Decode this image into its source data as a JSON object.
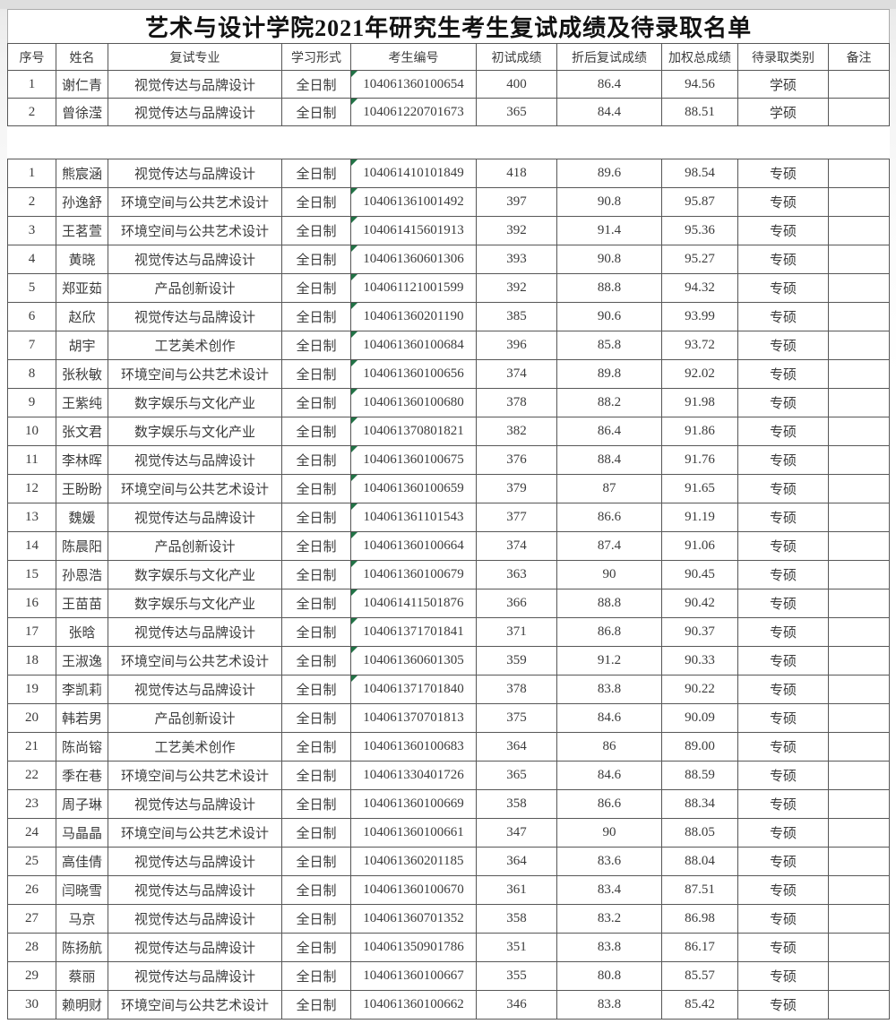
{
  "page": {
    "title": "艺术与设计学院2021年研究生考生复试成绩及待录取名单",
    "margin_color": "#dedede",
    "grid_color": "#575757",
    "text_flag_color": "#217346"
  },
  "table": {
    "headers": [
      "序号",
      "姓名",
      "复试专业",
      "学习形式",
      "考生编号",
      "初试成绩",
      "折后复试成绩",
      "加权总成绩",
      "待录取类别",
      "备注"
    ],
    "sections": [
      {
        "rows": [
          {
            "no": "1",
            "name": "谢仁青",
            "major": "视觉传达与品牌设计",
            "mode": "全日制",
            "candidate_id": "104061360100654",
            "initial_score": "400",
            "retest_score": "86.4",
            "weighted_score": "94.56",
            "category": "学硕",
            "remark": "",
            "text_flag": true
          },
          {
            "no": "2",
            "name": "曾徐滢",
            "major": "视觉传达与品牌设计",
            "mode": "全日制",
            "candidate_id": "104061220701673",
            "initial_score": "365",
            "retest_score": "84.4",
            "weighted_score": "88.51",
            "category": "学硕",
            "remark": "",
            "text_flag": true
          }
        ]
      },
      {
        "rows": [
          {
            "no": "1",
            "name": "熊宸涵",
            "major": "视觉传达与品牌设计",
            "mode": "全日制",
            "candidate_id": "104061410101849",
            "initial_score": "418",
            "retest_score": "89.6",
            "weighted_score": "98.54",
            "category": "专硕",
            "remark": "",
            "text_flag": true
          },
          {
            "no": "2",
            "name": "孙逸舒",
            "major": "环境空间与公共艺术设计",
            "mode": "全日制",
            "candidate_id": "104061361001492",
            "initial_score": "397",
            "retest_score": "90.8",
            "weighted_score": "95.87",
            "category": "专硕",
            "remark": "",
            "text_flag": true
          },
          {
            "no": "3",
            "name": "王茗萱",
            "major": "环境空间与公共艺术设计",
            "mode": "全日制",
            "candidate_id": "104061415601913",
            "initial_score": "392",
            "retest_score": "91.4",
            "weighted_score": "95.36",
            "category": "专硕",
            "remark": "",
            "text_flag": true
          },
          {
            "no": "4",
            "name": "黄晓",
            "major": "视觉传达与品牌设计",
            "mode": "全日制",
            "candidate_id": "104061360601306",
            "initial_score": "393",
            "retest_score": "90.8",
            "weighted_score": "95.27",
            "category": "专硕",
            "remark": "",
            "text_flag": true
          },
          {
            "no": "5",
            "name": "郑亚茹",
            "major": "产品创新设计",
            "mode": "全日制",
            "candidate_id": "104061121001599",
            "initial_score": "392",
            "retest_score": "88.8",
            "weighted_score": "94.32",
            "category": "专硕",
            "remark": "",
            "text_flag": true
          },
          {
            "no": "6",
            "name": "赵欣",
            "major": "视觉传达与品牌设计",
            "mode": "全日制",
            "candidate_id": "104061360201190",
            "initial_score": "385",
            "retest_score": "90.6",
            "weighted_score": "93.99",
            "category": "专硕",
            "remark": "",
            "text_flag": true
          },
          {
            "no": "7",
            "name": "胡宇",
            "major": "工艺美术创作",
            "mode": "全日制",
            "candidate_id": "104061360100684",
            "initial_score": "396",
            "retest_score": "85.8",
            "weighted_score": "93.72",
            "category": "专硕",
            "remark": "",
            "text_flag": true
          },
          {
            "no": "8",
            "name": "张秋敏",
            "major": "环境空间与公共艺术设计",
            "mode": "全日制",
            "candidate_id": "104061360100656",
            "initial_score": "374",
            "retest_score": "89.8",
            "weighted_score": "92.02",
            "category": "专硕",
            "remark": "",
            "text_flag": true
          },
          {
            "no": "9",
            "name": "王紫纯",
            "major": "数字娱乐与文化产业",
            "mode": "全日制",
            "candidate_id": "104061360100680",
            "initial_score": "378",
            "retest_score": "88.2",
            "weighted_score": "91.98",
            "category": "专硕",
            "remark": "",
            "text_flag": true
          },
          {
            "no": "10",
            "name": "张文君",
            "major": "数字娱乐与文化产业",
            "mode": "全日制",
            "candidate_id": "104061370801821",
            "initial_score": "382",
            "retest_score": "86.4",
            "weighted_score": "91.86",
            "category": "专硕",
            "remark": "",
            "text_flag": true
          },
          {
            "no": "11",
            "name": "李林晖",
            "major": "视觉传达与品牌设计",
            "mode": "全日制",
            "candidate_id": "104061360100675",
            "initial_score": "376",
            "retest_score": "88.4",
            "weighted_score": "91.76",
            "category": "专硕",
            "remark": "",
            "text_flag": true
          },
          {
            "no": "12",
            "name": "王盼盼",
            "major": "环境空间与公共艺术设计",
            "mode": "全日制",
            "candidate_id": "104061360100659",
            "initial_score": "379",
            "retest_score": "87",
            "weighted_score": "91.65",
            "category": "专硕",
            "remark": "",
            "text_flag": true
          },
          {
            "no": "13",
            "name": "魏媛",
            "major": "视觉传达与品牌设计",
            "mode": "全日制",
            "candidate_id": "104061361101543",
            "initial_score": "377",
            "retest_score": "86.6",
            "weighted_score": "91.19",
            "category": "专硕",
            "remark": "",
            "text_flag": true
          },
          {
            "no": "14",
            "name": "陈晨阳",
            "major": "产品创新设计",
            "mode": "全日制",
            "candidate_id": "104061360100664",
            "initial_score": "374",
            "retest_score": "87.4",
            "weighted_score": "91.06",
            "category": "专硕",
            "remark": "",
            "text_flag": true
          },
          {
            "no": "15",
            "name": "孙恩浩",
            "major": "数字娱乐与文化产业",
            "mode": "全日制",
            "candidate_id": "104061360100679",
            "initial_score": "363",
            "retest_score": "90",
            "weighted_score": "90.45",
            "category": "专硕",
            "remark": "",
            "text_flag": true
          },
          {
            "no": "16",
            "name": "王苗苗",
            "major": "数字娱乐与文化产业",
            "mode": "全日制",
            "candidate_id": "104061411501876",
            "initial_score": "366",
            "retest_score": "88.8",
            "weighted_score": "90.42",
            "category": "专硕",
            "remark": "",
            "text_flag": true
          },
          {
            "no": "17",
            "name": "张晗",
            "major": "视觉传达与品牌设计",
            "mode": "全日制",
            "candidate_id": "104061371701841",
            "initial_score": "371",
            "retest_score": "86.8",
            "weighted_score": "90.37",
            "category": "专硕",
            "remark": "",
            "text_flag": true
          },
          {
            "no": "18",
            "name": "王淑逸",
            "major": "环境空间与公共艺术设计",
            "mode": "全日制",
            "candidate_id": "104061360601305",
            "initial_score": "359",
            "retest_score": "91.2",
            "weighted_score": "90.33",
            "category": "专硕",
            "remark": "",
            "text_flag": true
          },
          {
            "no": "19",
            "name": "李凯莉",
            "major": "视觉传达与品牌设计",
            "mode": "全日制",
            "candidate_id": "104061371701840",
            "initial_score": "378",
            "retest_score": "83.8",
            "weighted_score": "90.22",
            "category": "专硕",
            "remark": "",
            "text_flag": true
          },
          {
            "no": "20",
            "name": "韩若男",
            "major": "产品创新设计",
            "mode": "全日制",
            "candidate_id": "104061370701813",
            "initial_score": "375",
            "retest_score": "84.6",
            "weighted_score": "90.09",
            "category": "专硕",
            "remark": "",
            "text_flag": false
          },
          {
            "no": "21",
            "name": "陈尚镕",
            "major": "工艺美术创作",
            "mode": "全日制",
            "candidate_id": "104061360100683",
            "initial_score": "364",
            "retest_score": "86",
            "weighted_score": "89.00",
            "category": "专硕",
            "remark": "",
            "text_flag": false
          },
          {
            "no": "22",
            "name": "季在巷",
            "major": "环境空间与公共艺术设计",
            "mode": "全日制",
            "candidate_id": "104061330401726",
            "initial_score": "365",
            "retest_score": "84.6",
            "weighted_score": "88.59",
            "category": "专硕",
            "remark": "",
            "text_flag": false
          },
          {
            "no": "23",
            "name": "周子琳",
            "major": "视觉传达与品牌设计",
            "mode": "全日制",
            "candidate_id": "104061360100669",
            "initial_score": "358",
            "retest_score": "86.6",
            "weighted_score": "88.34",
            "category": "专硕",
            "remark": "",
            "text_flag": false
          },
          {
            "no": "24",
            "name": "马晶晶",
            "major": "环境空间与公共艺术设计",
            "mode": "全日制",
            "candidate_id": "104061360100661",
            "initial_score": "347",
            "retest_score": "90",
            "weighted_score": "88.05",
            "category": "专硕",
            "remark": "",
            "text_flag": false
          },
          {
            "no": "25",
            "name": "高佳倩",
            "major": "视觉传达与品牌设计",
            "mode": "全日制",
            "candidate_id": "104061360201185",
            "initial_score": "364",
            "retest_score": "83.6",
            "weighted_score": "88.04",
            "category": "专硕",
            "remark": "",
            "text_flag": false
          },
          {
            "no": "26",
            "name": "闫晓雪",
            "major": "视觉传达与品牌设计",
            "mode": "全日制",
            "candidate_id": "104061360100670",
            "initial_score": "361",
            "retest_score": "83.4",
            "weighted_score": "87.51",
            "category": "专硕",
            "remark": "",
            "text_flag": false
          },
          {
            "no": "27",
            "name": "马京",
            "major": "视觉传达与品牌设计",
            "mode": "全日制",
            "candidate_id": "104061360701352",
            "initial_score": "358",
            "retest_score": "83.2",
            "weighted_score": "86.98",
            "category": "专硕",
            "remark": "",
            "text_flag": false
          },
          {
            "no": "28",
            "name": "陈扬航",
            "major": "视觉传达与品牌设计",
            "mode": "全日制",
            "candidate_id": "104061350901786",
            "initial_score": "351",
            "retest_score": "83.8",
            "weighted_score": "86.17",
            "category": "专硕",
            "remark": "",
            "text_flag": false
          },
          {
            "no": "29",
            "name": "蔡丽",
            "major": "视觉传达与品牌设计",
            "mode": "全日制",
            "candidate_id": "104061360100667",
            "initial_score": "355",
            "retest_score": "80.8",
            "weighted_score": "85.57",
            "category": "专硕",
            "remark": "",
            "text_flag": false
          },
          {
            "no": "30",
            "name": "赖明财",
            "major": "环境空间与公共艺术设计",
            "mode": "全日制",
            "candidate_id": "104061360100662",
            "initial_score": "346",
            "retest_score": "83.8",
            "weighted_score": "85.42",
            "category": "专硕",
            "remark": "",
            "text_flag": false
          }
        ]
      }
    ]
  }
}
